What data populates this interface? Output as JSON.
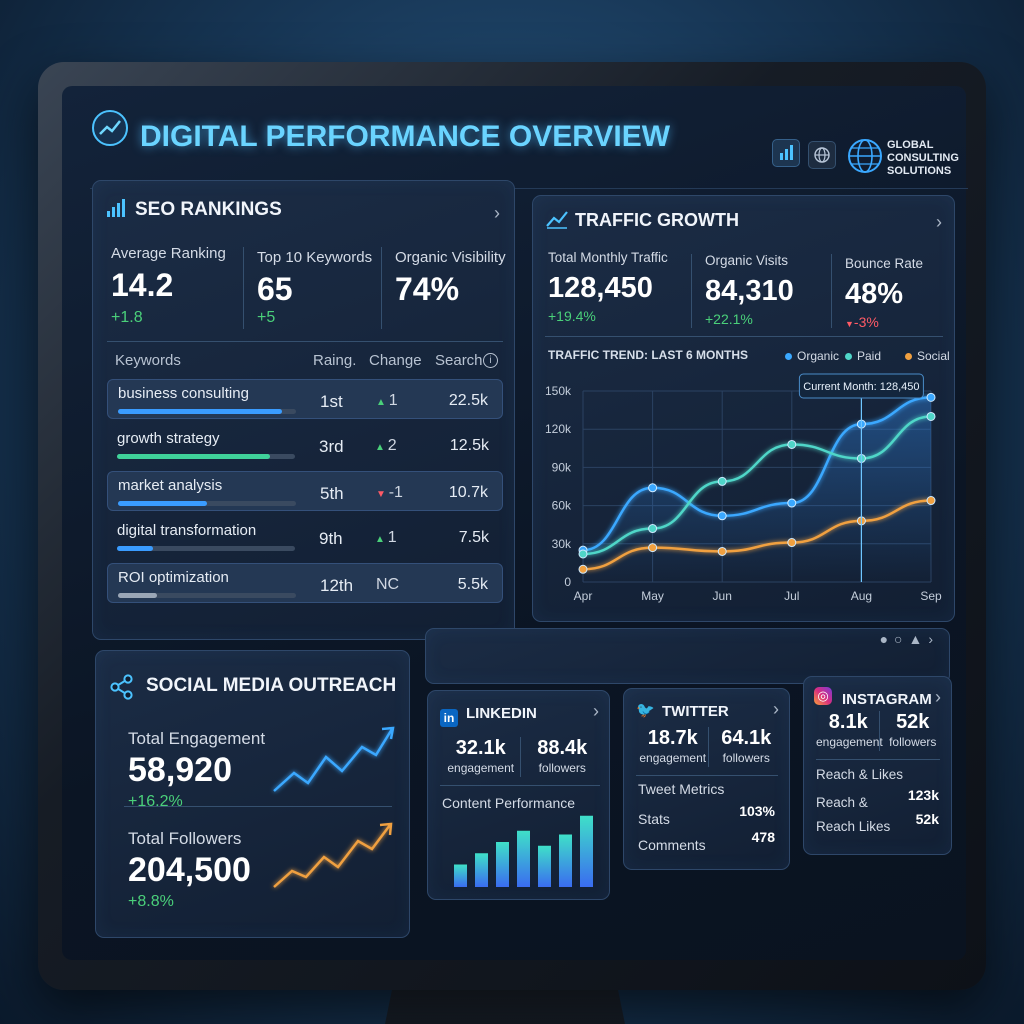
{
  "header": {
    "title": "DIGITAL PERFORMANCE OVERVIEW",
    "company": [
      "GLOBAL",
      "CONSULTING",
      "SOLUTIONS"
    ]
  },
  "seo": {
    "title": "SEO RANKINGS",
    "kpis": [
      {
        "label": "Average Ranking",
        "value": "14.2",
        "change": "+1.8"
      },
      {
        "label": "Top 10 Keywords",
        "value": "65",
        "change": "+5"
      },
      {
        "label": "Organic Visibility",
        "value": "74%"
      }
    ],
    "columns": [
      "Keywords",
      "Raing.",
      "Change",
      "Search"
    ],
    "rows": [
      {
        "keyword": "business consulting",
        "rank": "1st",
        "change": "1",
        "search": "22.5k",
        "progress": 92,
        "color": "#3a9cff"
      },
      {
        "keyword": "growth strategy",
        "rank": "3rd",
        "change": "2",
        "search": "12.5k",
        "progress": 86,
        "color": "#3fd29a"
      },
      {
        "keyword": "market analysis",
        "rank": "5th",
        "change": "-1",
        "search": "10.7k",
        "progress": 50,
        "color": "#3a9cff"
      },
      {
        "keyword": "digital transformation",
        "rank": "9th",
        "change": "1",
        "search": "7.5k",
        "progress": 20,
        "color": "#3a9cff"
      },
      {
        "keyword": "ROI optimization",
        "rank": "12th",
        "change": "NC",
        "search": "5.5k",
        "progress": 22,
        "color": "#9aa6b6"
      }
    ]
  },
  "traffic": {
    "title": "TRAFFIC GROWTH",
    "kpis": [
      {
        "label": "Total Monthly Traffic",
        "value": "128,450",
        "change": "+19.4%"
      },
      {
        "label": "Organic Visits",
        "value": "84,310",
        "change": "+22.1%"
      },
      {
        "label": "Bounce Rate",
        "value": "48%",
        "change": "-3%"
      }
    ],
    "chart": {
      "type": "line",
      "title": "TRAFFIC TREND: LAST 6 MONTHS",
      "categories": [
        "Apr",
        "May",
        "Jun",
        "Jul",
        "Aug",
        "Sep"
      ],
      "series": [
        {
          "name": "Organic",
          "color": "#3aa8ff",
          "values": [
            25000,
            74000,
            52000,
            62000,
            124000,
            145000
          ]
        },
        {
          "name": "Paid",
          "color": "#4fd6c8",
          "values": [
            22000,
            42000,
            79000,
            108000,
            97000,
            130000
          ]
        },
        {
          "name": "Social",
          "color": "#f0a040",
          "values": [
            10000,
            27000,
            24000,
            31000,
            48000,
            64000
          ]
        }
      ],
      "ylim": [
        0,
        150000
      ],
      "yticks": [
        0,
        {
          "value": 30000,
          "label": "30k"
        },
        {
          "value": 60000,
          "label": "60k"
        },
        {
          "value": 90000,
          "label": "90k"
        },
        {
          "value": 120000,
          "label": "120k"
        },
        {
          "value": 150000,
          "label": "150k"
        }
      ],
      "grid": true,
      "annotation": "Current Month: 128,450"
    }
  },
  "social": {
    "title": "SOCIAL MEDIA OUTREACH",
    "metrics": [
      {
        "label": "Total Engagement",
        "value": "58,920",
        "change": "+16.2%"
      },
      {
        "label": "Total Followers",
        "value": "204,500",
        "change": "+8.8%"
      }
    ]
  },
  "linkedin": {
    "title": "LINKEDIN",
    "stats": [
      {
        "value": "32.1k",
        "label": "engagement"
      },
      {
        "value": "88.4k",
        "label": "followers"
      }
    ],
    "chart": {
      "type": "bar",
      "title": "Content Performance",
      "values": [
        30,
        45,
        60,
        75,
        55,
        70,
        95
      ]
    }
  },
  "twitter": {
    "title": "TWITTER",
    "stats": [
      {
        "value": "18.7k",
        "label": "engagement"
      },
      {
        "value": "64.1k",
        "label": "followers"
      }
    ],
    "section": "Tweet Metrics",
    "rows": [
      {
        "label": "Stats",
        "value": "103%"
      },
      {
        "label": "Comments",
        "value": "478"
      }
    ]
  },
  "instagram": {
    "title": "INSTAGRAM",
    "stats": [
      {
        "value": "8.1k",
        "label": "engagement"
      },
      {
        "value": "52k",
        "label": "followers"
      }
    ],
    "section": "Reach & Likes",
    "rows": [
      {
        "label": "Reach &",
        "value": "123k"
      },
      {
        "label": "Reach Likes",
        "value": "52k"
      }
    ]
  }
}
